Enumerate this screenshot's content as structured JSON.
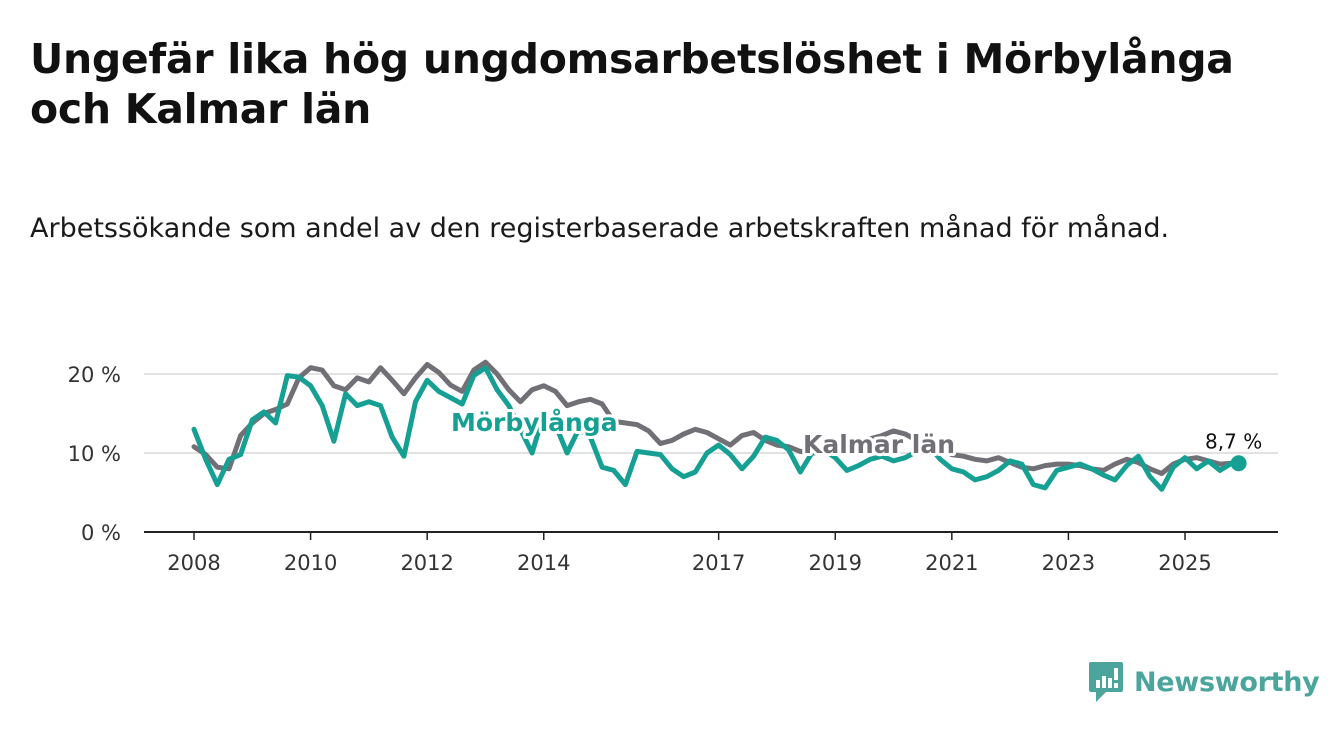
{
  "title": "Ungefär lika hög ungdomsarbetslöshet i Mörbylånga och Kalmar län",
  "subtitle": "Arbetssökande som andel av den registerbaserade arbetskraften månad för månad.",
  "brand": {
    "name": "Newsworthy",
    "color": "#4ba59d"
  },
  "chart_data": {
    "type": "line",
    "title": "Ungefär lika hög ungdomsarbetslöshet i Mörbylånga och Kalmar län",
    "xlabel": "",
    "ylabel": "",
    "x_unit": "year",
    "xlim": [
      2008.0,
      2026.7
    ],
    "ylim": [
      0,
      20
    ],
    "y_ticks": [
      0,
      10,
      20
    ],
    "y_tick_labels": [
      "0 %",
      "10 %",
      "20 %"
    ],
    "x_ticks": [
      2008,
      2010,
      2012,
      2014,
      2017,
      2019,
      2021,
      2023,
      2025
    ],
    "x_tick_labels": [
      "2008",
      "2010",
      "2012",
      "2014",
      "2017",
      "2019",
      "2021",
      "2023",
      "2025"
    ],
    "grid": "horizontal",
    "end_label": "8,7 %",
    "series": [
      {
        "name": "Kalmar län",
        "label": "Kalmar län",
        "color": "#727077",
        "x": [
          2008.0,
          2008.2,
          2008.4,
          2008.6,
          2008.8,
          2009.0,
          2009.2,
          2009.4,
          2009.6,
          2009.8,
          2010.0,
          2010.2,
          2010.4,
          2010.6,
          2010.8,
          2011.0,
          2011.2,
          2011.4,
          2011.6,
          2011.8,
          2012.0,
          2012.2,
          2012.4,
          2012.6,
          2012.8,
          2013.0,
          2013.2,
          2013.4,
          2013.6,
          2013.8,
          2014.0,
          2014.2,
          2014.4,
          2014.6,
          2014.8,
          2015.0,
          2015.2,
          2015.4,
          2015.6,
          2015.8,
          2016.0,
          2016.2,
          2016.4,
          2016.6,
          2016.8,
          2017.0,
          2017.2,
          2017.4,
          2017.6,
          2017.8,
          2018.0,
          2018.2,
          2018.4,
          2018.6,
          2018.8,
          2019.0,
          2019.2,
          2019.4,
          2019.6,
          2019.8,
          2020.0,
          2020.2,
          2020.4,
          2020.6,
          2020.8,
          2021.0,
          2021.2,
          2021.4,
          2021.6,
          2021.8,
          2022.0,
          2022.2,
          2022.4,
          2022.6,
          2022.8,
          2023.0,
          2023.2,
          2023.4,
          2023.6,
          2023.8,
          2024.0,
          2024.2,
          2024.4,
          2024.6,
          2024.8,
          2025.0,
          2025.2,
          2025.4,
          2025.6,
          2025.8
        ],
        "values": [
          10.8,
          9.8,
          8.2,
          8.0,
          12.2,
          13.8,
          15.0,
          15.5,
          16.2,
          19.5,
          20.8,
          20.5,
          18.5,
          18.0,
          19.5,
          19.0,
          20.8,
          19.2,
          17.5,
          19.5,
          21.2,
          20.2,
          18.6,
          17.8,
          20.5,
          21.5,
          20.0,
          18.0,
          16.5,
          18.0,
          18.5,
          17.8,
          16.0,
          16.5,
          16.8,
          16.2,
          14.0,
          13.8,
          13.6,
          12.8,
          11.2,
          11.6,
          12.4,
          13.0,
          12.6,
          11.8,
          11.0,
          12.2,
          12.6,
          11.6,
          11.0,
          10.8,
          10.2,
          10.0,
          10.0,
          10.2,
          10.6,
          11.2,
          11.8,
          12.2,
          12.8,
          12.4,
          11.6,
          11.0,
          10.4,
          9.8,
          9.6,
          9.2,
          9.0,
          9.4,
          8.8,
          8.2,
          8.0,
          8.4,
          8.6,
          8.6,
          8.4,
          8.0,
          7.8,
          8.6,
          9.2,
          8.8,
          8.0,
          7.4,
          8.6,
          9.2,
          9.4,
          9.0,
          8.6,
          8.7
        ]
      },
      {
        "name": "Mörbylånga",
        "label": "Mörbylånga",
        "color": "#15a093",
        "x": [
          2008.0,
          2008.2,
          2008.4,
          2008.6,
          2008.8,
          2009.0,
          2009.2,
          2009.4,
          2009.6,
          2009.8,
          2010.0,
          2010.2,
          2010.4,
          2010.6,
          2010.8,
          2011.0,
          2011.2,
          2011.4,
          2011.6,
          2011.8,
          2012.0,
          2012.2,
          2012.4,
          2012.6,
          2012.8,
          2013.0,
          2013.2,
          2013.4,
          2013.6,
          2013.8,
          2014.0,
          2014.2,
          2014.4,
          2014.6,
          2014.8,
          2015.0,
          2015.2,
          2015.4,
          2015.6,
          2015.8,
          2016.0,
          2016.2,
          2016.4,
          2016.6,
          2016.8,
          2017.0,
          2017.2,
          2017.4,
          2017.6,
          2017.8,
          2018.0,
          2018.2,
          2018.4,
          2018.6,
          2018.8,
          2019.0,
          2019.2,
          2019.4,
          2019.6,
          2019.8,
          2020.0,
          2020.2,
          2020.4,
          2020.6,
          2020.8,
          2021.0,
          2021.2,
          2021.4,
          2021.6,
          2021.8,
          2022.0,
          2022.2,
          2022.4,
          2022.6,
          2022.8,
          2023.0,
          2023.2,
          2023.4,
          2023.6,
          2023.8,
          2024.0,
          2024.2,
          2024.4,
          2024.6,
          2024.8,
          2025.0,
          2025.2,
          2025.4,
          2025.6,
          2025.8
        ],
        "values": [
          13.0,
          9.2,
          6.0,
          9.2,
          9.8,
          14.2,
          15.2,
          13.8,
          19.8,
          19.6,
          18.5,
          16.0,
          11.5,
          17.5,
          16.0,
          16.5,
          16.0,
          12.0,
          9.6,
          16.5,
          19.2,
          17.8,
          17.0,
          16.2,
          19.8,
          20.8,
          18.0,
          16.0,
          13.0,
          10.0,
          15.0,
          13.6,
          10.0,
          13.0,
          12.0,
          8.2,
          7.8,
          6.0,
          10.2,
          10.0,
          9.8,
          8.0,
          7.0,
          7.6,
          10.0,
          11.0,
          9.8,
          8.0,
          9.6,
          12.0,
          11.6,
          10.4,
          7.6,
          10.0,
          10.4,
          9.4,
          7.8,
          8.4,
          9.2,
          9.6,
          9.0,
          9.4,
          10.2,
          11.0,
          9.2,
          8.0,
          7.6,
          6.6,
          7.0,
          7.8,
          9.0,
          8.6,
          6.0,
          5.6,
          7.8,
          8.2,
          8.6,
          8.0,
          7.2,
          6.6,
          8.4,
          9.6,
          7.0,
          5.4,
          8.2,
          9.4,
          8.0,
          9.0,
          7.8,
          8.7
        ]
      }
    ]
  }
}
